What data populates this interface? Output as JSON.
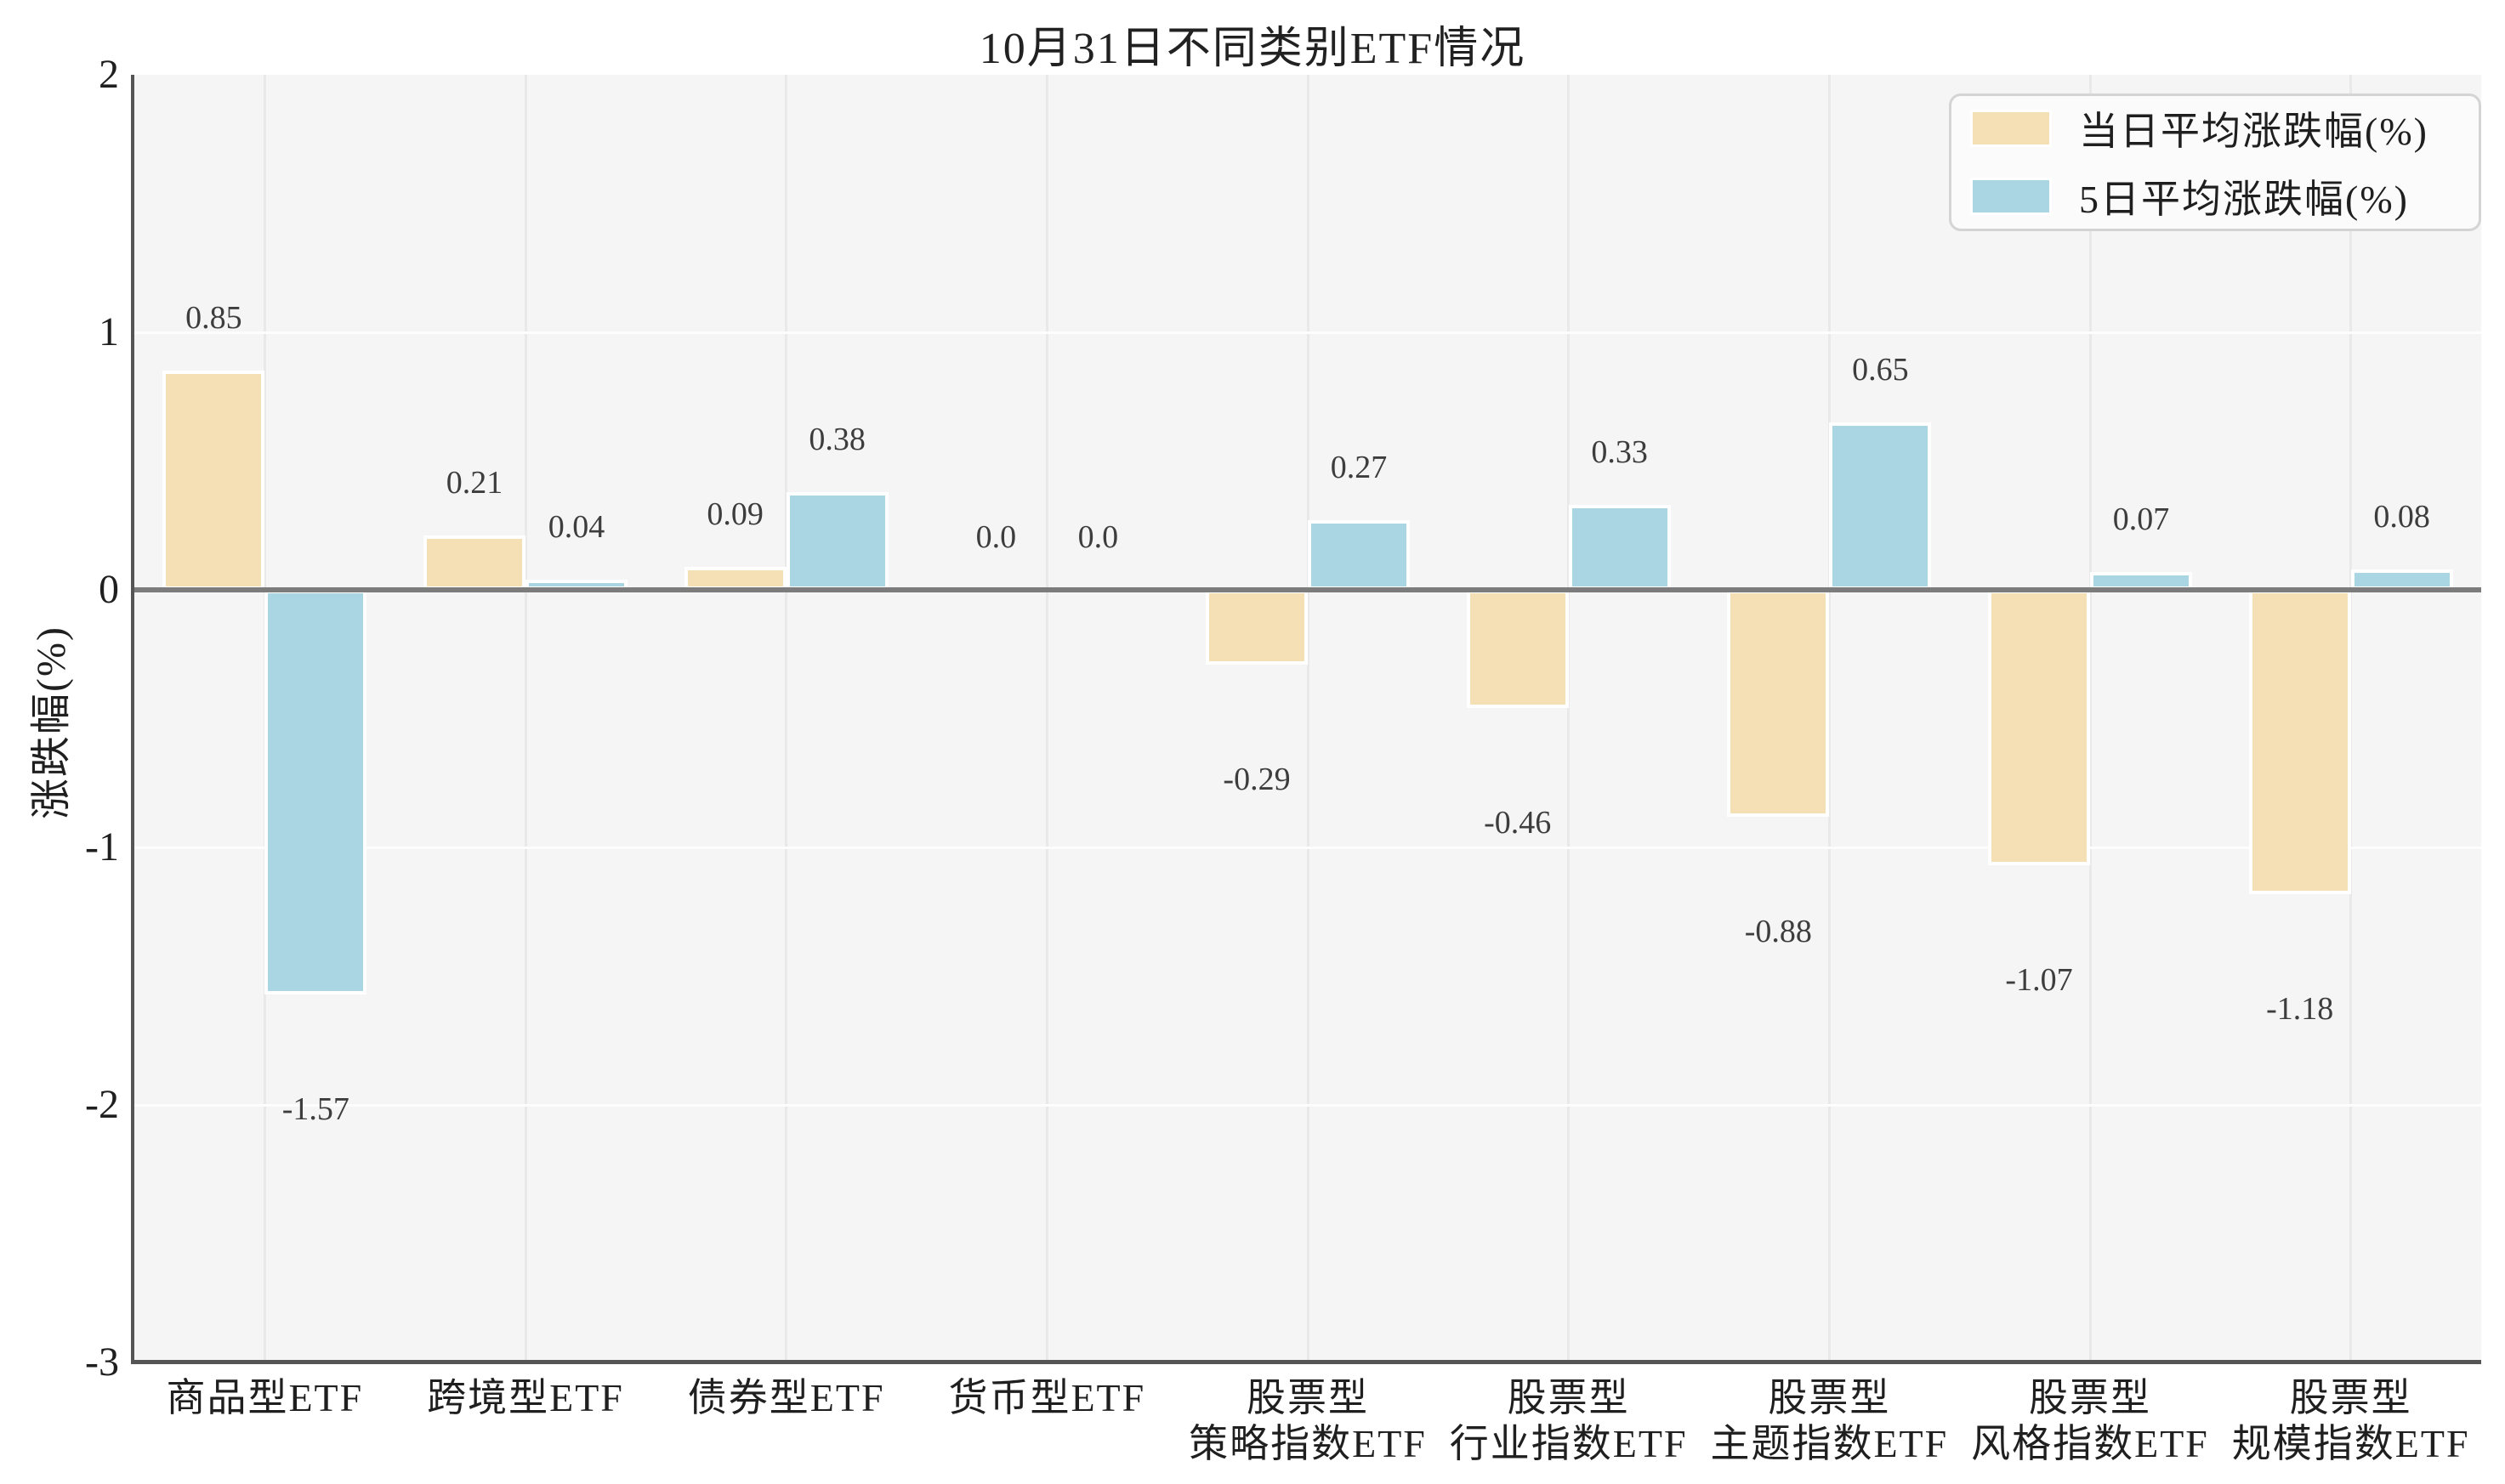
{
  "title": "10月31日不同类别ETF情况",
  "y_axis": {
    "label": "涨跌幅(%)",
    "ticks": [
      {
        "v": 2,
        "label": "2"
      },
      {
        "v": 1,
        "label": "1"
      },
      {
        "v": 0,
        "label": "0"
      },
      {
        "v": -1,
        "label": "-1"
      },
      {
        "v": -2,
        "label": "-2"
      },
      {
        "v": -3,
        "label": "-3"
      }
    ],
    "grid_values": [
      1,
      -1,
      -2
    ]
  },
  "legend": {
    "items": [
      {
        "series": "daily",
        "label": "当日平均涨跌幅(%)"
      },
      {
        "series": "five_day",
        "label": "5日平均涨跌幅(%)"
      }
    ]
  },
  "colors": {
    "daily_bar": "#f5e0b5",
    "five_day_bar": "#aad6e4",
    "plot_background": "#f5f5f5",
    "zero_line": "#7c7c7c",
    "horizontal_grid": "#fdfdfd",
    "vertical_grid": "#e9e9e9",
    "spine": "#555555"
  },
  "chart_data": {
    "type": "bar",
    "title": "10月31日不同类别ETF情况",
    "ylabel": "涨跌幅(%)",
    "ylim": [
      -3,
      2
    ],
    "grid": true,
    "legend_position": "upper right",
    "categories": [
      [
        "商品型ETF"
      ],
      [
        "跨境型ETF"
      ],
      [
        "债券型ETF"
      ],
      [
        "货币型ETF"
      ],
      [
        "股票型",
        "策略指数ETF"
      ],
      [
        "股票型",
        "行业指数ETF"
      ],
      [
        "股票型",
        "主题指数ETF"
      ],
      [
        "股票型",
        "风格指数ETF"
      ],
      [
        "股票型",
        "规模指数ETF"
      ]
    ],
    "series": [
      {
        "name": "当日平均涨跌幅(%)",
        "key": "daily",
        "values": [
          0.85,
          0.21,
          0.09,
          0.0,
          -0.29,
          -0.46,
          -0.88,
          -1.07,
          -1.18
        ],
        "labels": [
          "0.85",
          "0.21",
          "0.09",
          "0.0",
          "-0.29",
          "-0.46",
          "-0.88",
          "-1.07",
          "-1.18"
        ]
      },
      {
        "name": "5日平均涨跌幅(%)",
        "key": "five_day",
        "values": [
          -1.57,
          0.04,
          0.38,
          0.0,
          0.27,
          0.33,
          0.65,
          0.07,
          0.08
        ],
        "labels": [
          "-1.57",
          "0.04",
          "0.38",
          "0.0",
          "0.27",
          "0.33",
          "0.65",
          "0.07",
          "0.08"
        ]
      }
    ]
  }
}
